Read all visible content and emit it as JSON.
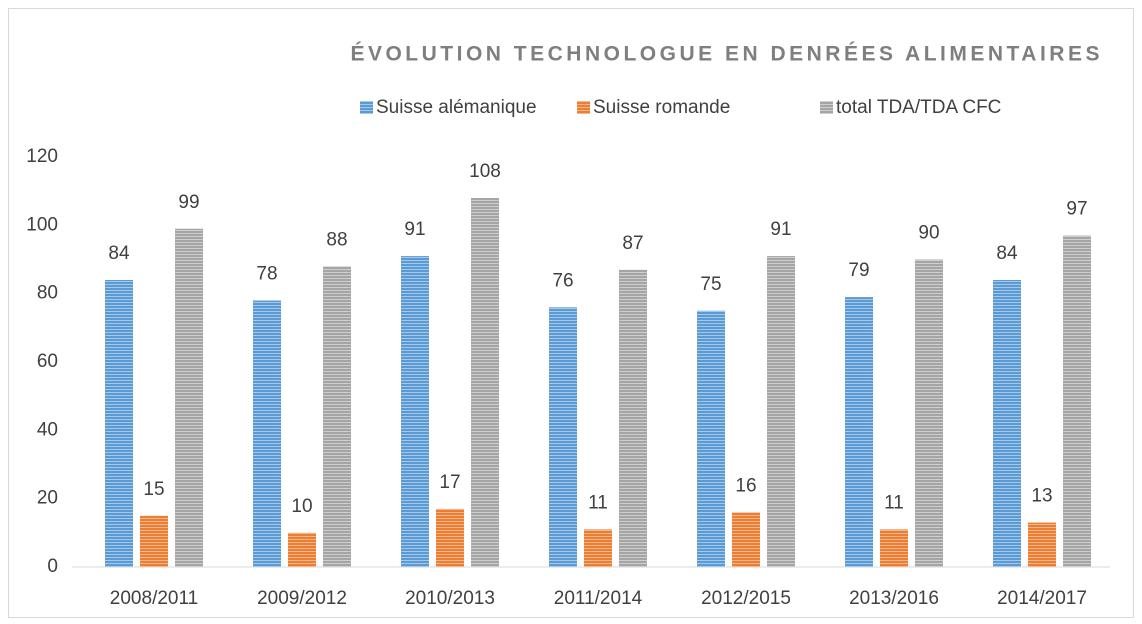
{
  "chart_data": {
    "type": "bar",
    "title": "ÉVOLUTION TECHNOLOGUE EN DENRÉES ALIMENTAIRES",
    "categories": [
      "2008/2011",
      "2009/2012",
      "2010/2013",
      "2011/2014",
      "2012/2015",
      "2013/2016",
      "2014/2017"
    ],
    "series": [
      {
        "name": "Suisse alémanique",
        "color": "#5b9bd5",
        "values": [
          84,
          78,
          91,
          76,
          75,
          79,
          84
        ]
      },
      {
        "name": "Suisse romande",
        "color": "#ed7d31",
        "values": [
          15,
          10,
          17,
          11,
          16,
          11,
          13
        ]
      },
      {
        "name": "total TDA/TDA CFC",
        "color": "#a5a5a5",
        "values": [
          99,
          88,
          108,
          87,
          91,
          90,
          97
        ]
      }
    ],
    "ylim": [
      0,
      120
    ],
    "yticks": [
      0,
      20,
      40,
      60,
      80,
      100,
      120
    ],
    "grid": false,
    "legend": "top"
  }
}
